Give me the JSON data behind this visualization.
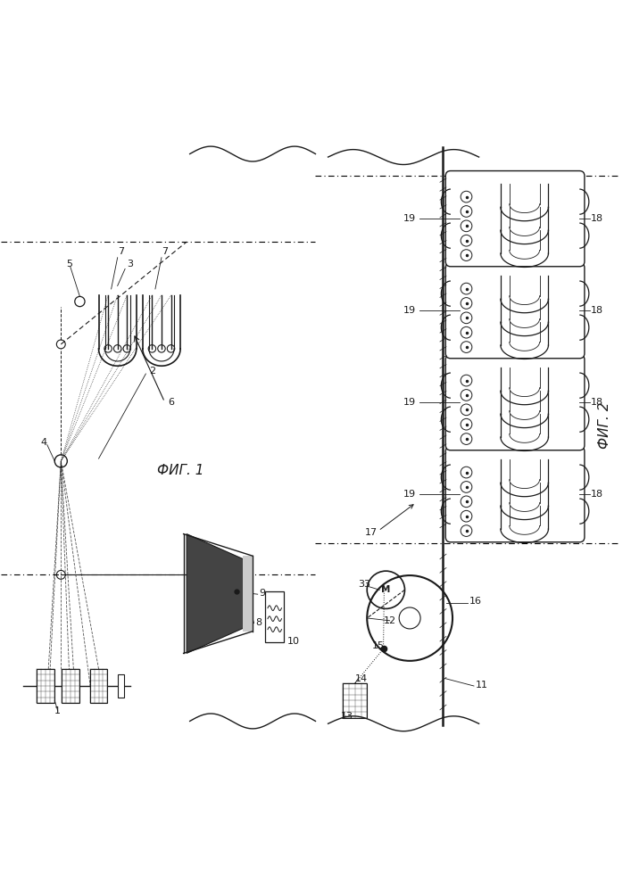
{
  "fig_width": 7.07,
  "fig_height": 10.0,
  "dpi": 100,
  "bg_color": "#ffffff",
  "line_color": "#1a1a1a",
  "fig1_label": "ФИГ. 1",
  "fig2_label": "ФИГ. 2"
}
